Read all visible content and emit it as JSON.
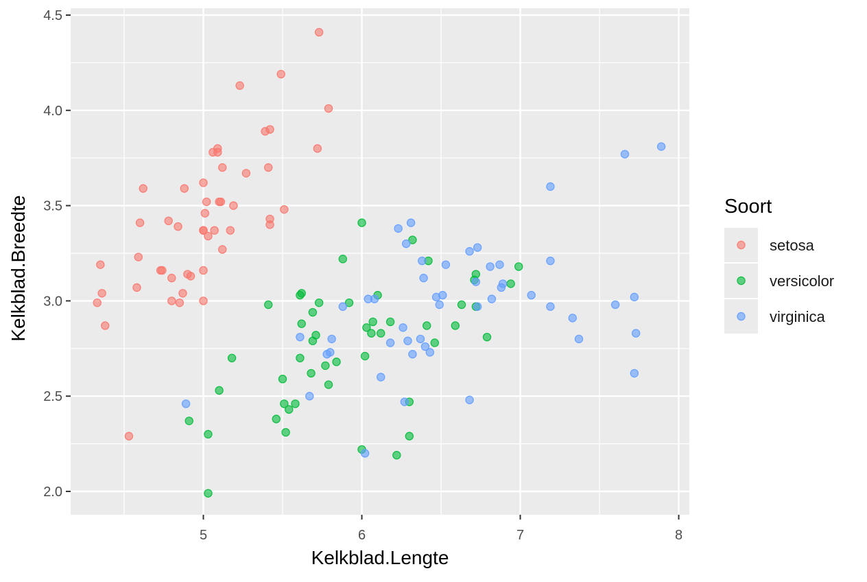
{
  "chart_data": {
    "type": "scatter",
    "xlabel": "Kelkblad.Lengte",
    "ylabel": "Kelkblad.Breedte",
    "xlim": [
      4.2,
      8.1
    ],
    "ylim": [
      1.9,
      4.55
    ],
    "x_ticks": [
      5,
      6,
      7,
      8
    ],
    "x_tick_labels": [
      "5",
      "6",
      "7",
      "8"
    ],
    "y_ticks": [
      2.0,
      2.5,
      3.0,
      3.5,
      4.0,
      4.5
    ],
    "y_tick_labels": [
      "2.0",
      "2.5",
      "3.0",
      "3.5",
      "4.0",
      "4.5"
    ],
    "grid": true,
    "legend_position": "right",
    "legend_title": "Soort",
    "point_opacity": 0.6,
    "colors": {
      "panel": "#ebebeb",
      "grid": "#ffffff",
      "setosa": "#F8766D",
      "versicolor": "#00BA38",
      "virginica": "#619CFF"
    },
    "series": [
      {
        "name": "setosa",
        "color": "#F8766D",
        "points": [
          [
            4.33,
            2.99
          ],
          [
            4.35,
            3.19
          ],
          [
            4.36,
            3.04
          ],
          [
            4.38,
            2.87
          ],
          [
            4.53,
            2.29
          ],
          [
            4.58,
            3.07
          ],
          [
            4.59,
            3.23
          ],
          [
            4.6,
            3.41
          ],
          [
            4.62,
            3.59
          ],
          [
            4.73,
            3.16
          ],
          [
            4.74,
            3.16
          ],
          [
            4.78,
            3.42
          ],
          [
            4.8,
            3.0
          ],
          [
            4.8,
            3.12
          ],
          [
            4.84,
            3.39
          ],
          [
            4.85,
            2.99
          ],
          [
            4.87,
            3.04
          ],
          [
            4.88,
            3.59
          ],
          [
            4.9,
            3.14
          ],
          [
            4.92,
            3.13
          ],
          [
            5.0,
            3.62
          ],
          [
            5.0,
            3.0
          ],
          [
            5.0,
            3.37
          ],
          [
            5.0,
            3.16
          ],
          [
            5.0,
            3.37
          ],
          [
            5.01,
            3.46
          ],
          [
            5.02,
            3.52
          ],
          [
            5.03,
            3.34
          ],
          [
            5.06,
            3.78
          ],
          [
            5.07,
            3.37
          ],
          [
            5.09,
            3.8
          ],
          [
            5.09,
            3.78
          ],
          [
            5.1,
            3.52
          ],
          [
            5.11,
            3.52
          ],
          [
            5.12,
            3.27
          ],
          [
            5.12,
            3.7
          ],
          [
            5.17,
            3.37
          ],
          [
            5.19,
            3.5
          ],
          [
            5.23,
            4.13
          ],
          [
            5.27,
            3.67
          ],
          [
            5.39,
            3.89
          ],
          [
            5.41,
            3.7
          ],
          [
            5.42,
            3.9
          ],
          [
            5.42,
            3.4
          ],
          [
            5.42,
            3.43
          ],
          [
            5.49,
            4.19
          ],
          [
            5.51,
            3.48
          ],
          [
            5.72,
            3.8
          ],
          [
            5.73,
            4.41
          ],
          [
            5.79,
            4.01
          ]
        ]
      },
      {
        "name": "versicolor",
        "color": "#00BA38",
        "points": [
          [
            4.91,
            2.37
          ],
          [
            5.03,
            1.99
          ],
          [
            5.03,
            2.3
          ],
          [
            5.1,
            2.53
          ],
          [
            5.18,
            2.7
          ],
          [
            5.41,
            2.98
          ],
          [
            5.46,
            2.38
          ],
          [
            5.5,
            2.59
          ],
          [
            5.51,
            2.46
          ],
          [
            5.52,
            2.31
          ],
          [
            5.54,
            2.43
          ],
          [
            5.58,
            2.46
          ],
          [
            5.61,
            3.03
          ],
          [
            5.61,
            2.7
          ],
          [
            5.62,
            3.04
          ],
          [
            5.62,
            2.88
          ],
          [
            5.68,
            2.62
          ],
          [
            5.69,
            2.94
          ],
          [
            5.69,
            2.79
          ],
          [
            5.71,
            2.82
          ],
          [
            5.73,
            2.99
          ],
          [
            5.77,
            2.66
          ],
          [
            5.79,
            2.56
          ],
          [
            5.84,
            2.68
          ],
          [
            5.88,
            3.22
          ],
          [
            5.92,
            2.99
          ],
          [
            6.0,
            2.22
          ],
          [
            6.0,
            3.41
          ],
          [
            6.02,
            2.71
          ],
          [
            6.03,
            2.86
          ],
          [
            6.06,
            2.83
          ],
          [
            6.07,
            2.89
          ],
          [
            6.1,
            3.03
          ],
          [
            6.12,
            2.83
          ],
          [
            6.18,
            2.89
          ],
          [
            6.22,
            2.19
          ],
          [
            6.3,
            2.47
          ],
          [
            6.3,
            2.29
          ],
          [
            6.32,
            3.32
          ],
          [
            6.41,
            2.87
          ],
          [
            6.42,
            3.21
          ],
          [
            6.46,
            2.78
          ],
          [
            6.59,
            2.87
          ],
          [
            6.63,
            2.98
          ],
          [
            6.71,
            3.11
          ],
          [
            6.72,
            3.14
          ],
          [
            6.72,
            2.97
          ],
          [
            6.79,
            2.81
          ],
          [
            6.94,
            3.09
          ],
          [
            6.99,
            3.18
          ]
        ]
      },
      {
        "name": "virginica",
        "color": "#619CFF",
        "points": [
          [
            4.89,
            2.46
          ],
          [
            5.61,
            2.81
          ],
          [
            5.67,
            2.5
          ],
          [
            5.78,
            2.72
          ],
          [
            5.8,
            2.73
          ],
          [
            5.81,
            2.8
          ],
          [
            5.88,
            2.97
          ],
          [
            6.02,
            2.2
          ],
          [
            6.04,
            3.01
          ],
          [
            6.08,
            3.01
          ],
          [
            6.12,
            2.6
          ],
          [
            6.18,
            2.78
          ],
          [
            6.23,
            3.38
          ],
          [
            6.26,
            2.86
          ],
          [
            6.27,
            2.47
          ],
          [
            6.28,
            3.3
          ],
          [
            6.29,
            2.79
          ],
          [
            6.31,
            3.41
          ],
          [
            6.32,
            2.72
          ],
          [
            6.37,
            2.8
          ],
          [
            6.38,
            3.21
          ],
          [
            6.39,
            3.12
          ],
          [
            6.4,
            2.76
          ],
          [
            6.43,
            2.73
          ],
          [
            6.47,
            3.02
          ],
          [
            6.49,
            2.98
          ],
          [
            6.51,
            3.03
          ],
          [
            6.53,
            3.19
          ],
          [
            6.68,
            3.26
          ],
          [
            6.68,
            2.48
          ],
          [
            6.72,
            3.1
          ],
          [
            6.73,
            2.97
          ],
          [
            6.73,
            3.28
          ],
          [
            6.81,
            3.18
          ],
          [
            6.82,
            3.01
          ],
          [
            6.87,
            3.19
          ],
          [
            6.88,
            3.07
          ],
          [
            6.89,
            3.09
          ],
          [
            7.07,
            3.03
          ],
          [
            7.19,
            3.6
          ],
          [
            7.19,
            3.21
          ],
          [
            7.19,
            2.97
          ],
          [
            7.33,
            2.91
          ],
          [
            7.37,
            2.8
          ],
          [
            7.6,
            2.98
          ],
          [
            7.66,
            3.77
          ],
          [
            7.72,
            2.62
          ],
          [
            7.72,
            3.02
          ],
          [
            7.73,
            2.83
          ],
          [
            7.89,
            3.81
          ]
        ]
      }
    ]
  }
}
